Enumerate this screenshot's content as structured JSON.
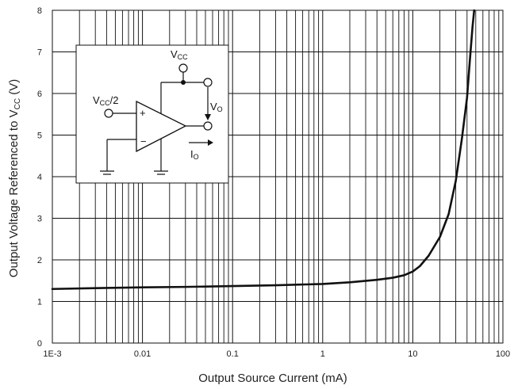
{
  "chart_data": {
    "type": "line",
    "xlabel": "Output Source Current (mA)",
    "ylabel_main": "Output Voltage Referenced to V",
    "ylabel_sub": "CC",
    "ylabel_unit": " (V)",
    "x_scale": "log",
    "xlim": [
      0.001,
      100
    ],
    "ylim": [
      0,
      8
    ],
    "x_ticks": [
      {
        "value": 0.001,
        "label": "1E-3"
      },
      {
        "value": 0.01,
        "label": "0.01"
      },
      {
        "value": 0.1,
        "label": "0.1"
      },
      {
        "value": 1,
        "label": "1"
      },
      {
        "value": 10,
        "label": "10"
      },
      {
        "value": 100,
        "label": "100"
      }
    ],
    "y_ticks": [
      {
        "value": 0,
        "label": "0"
      },
      {
        "value": 1,
        "label": "1"
      },
      {
        "value": 2,
        "label": "2"
      },
      {
        "value": 3,
        "label": "3"
      },
      {
        "value": 4,
        "label": "4"
      },
      {
        "value": 5,
        "label": "5"
      },
      {
        "value": 6,
        "label": "6"
      },
      {
        "value": 7,
        "label": "7"
      },
      {
        "value": 8,
        "label": "8"
      }
    ],
    "grid": true,
    "series": [
      {
        "x": [
          0.001,
          0.003,
          0.01,
          0.03,
          0.1,
          0.3,
          1,
          2,
          4,
          6,
          8,
          10,
          12,
          15,
          20,
          25,
          30,
          35,
          40,
          43,
          46,
          48
        ],
        "y": [
          1.3,
          1.32,
          1.34,
          1.35,
          1.37,
          1.39,
          1.42,
          1.46,
          1.52,
          1.57,
          1.63,
          1.72,
          1.85,
          2.1,
          2.55,
          3.1,
          3.9,
          4.9,
          5.9,
          6.8,
          7.6,
          8.0
        ]
      }
    ],
    "line_color": "#111111"
  },
  "schematic": {
    "vcc_top_label": "V",
    "vcc_top_sub": "CC",
    "vin_label": "V",
    "vin_sub": "CC",
    "vin_suffix": "/2",
    "vo_label": "V",
    "vo_sub": "O",
    "io_label": "I",
    "io_sub": "O",
    "plus_sign": "+",
    "minus_sign": "−"
  }
}
